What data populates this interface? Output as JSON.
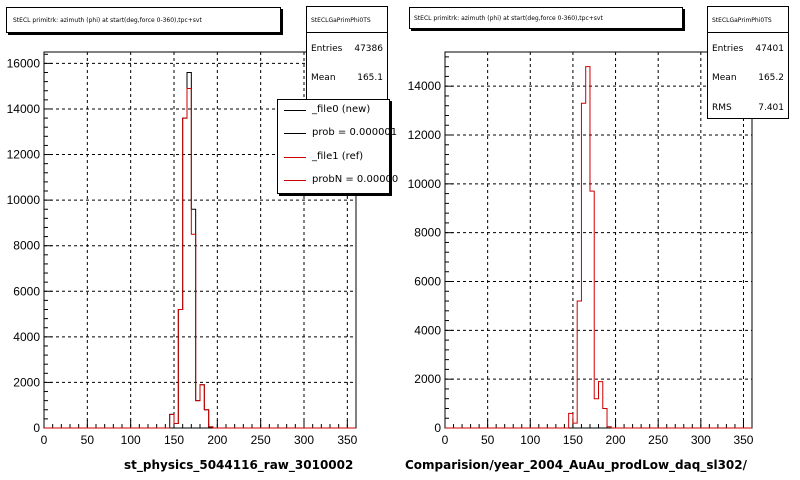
{
  "panels": [
    {
      "title": "StECL primitrk: azimuth (phi) at start(deg,force 0-360),tpc+svt",
      "stats": {
        "name": "StECLGaPrimPhi0TS",
        "rows": [
          {
            "label": "Entries",
            "value": "47386"
          },
          {
            "label": "Mean",
            "value": "165.1"
          }
        ]
      },
      "xlabel": "st_physics_5044116_raw_3010002",
      "legend": [
        {
          "label": "_file0 (new)",
          "color": "#000000"
        },
        {
          "label": "prob = 0.000001",
          "color": "#000000"
        },
        {
          "label": "_file1 (ref)",
          "color": "#cc0000"
        },
        {
          "label": "probN = 0.00000",
          "color": "#cc0000"
        }
      ]
    },
    {
      "title": "StECL primitrk: azimuth (phi) at start(deg,force 0-360),tpc+svt",
      "stats": {
        "name": "StECLGaPrimPhi0TS",
        "rows": [
          {
            "label": "Entries",
            "value": "47401"
          },
          {
            "label": "Mean",
            "value": "165.2"
          },
          {
            "label": "RMS",
            "value": "7.401"
          }
        ]
      },
      "xlabel": "Comparision/year_2004_AuAu_prodLow_daq_sl302/"
    }
  ],
  "chart_data": [
    {
      "type": "histogram",
      "title": "StECL primitrk: azimuth (phi) at start(deg,force 0-360),tpc+svt",
      "xlabel": "st_physics_5044116_raw_3010002",
      "xlim": [
        0,
        360
      ],
      "ylim": [
        0,
        16500
      ],
      "xticks": [
        0,
        50,
        100,
        150,
        200,
        250,
        300,
        350
      ],
      "yticks": [
        0,
        2000,
        4000,
        6000,
        8000,
        10000,
        12000,
        14000,
        16000
      ],
      "grid": true,
      "legend_position": "top-right",
      "bin_edges": [
        145,
        150,
        155,
        160,
        165,
        170,
        175,
        180,
        185,
        190,
        195
      ],
      "series": [
        {
          "name": "_file0 (new)",
          "color": "#000000",
          "values": [
            600,
            200,
            5200,
            13600,
            15600,
            9600,
            1200,
            1900,
            800,
            50
          ]
        },
        {
          "name": "_file1 (ref)",
          "color": "#cc0000",
          "values": [
            600,
            200,
            5200,
            13600,
            14900,
            8500,
            1200,
            1900,
            800,
            50
          ]
        }
      ]
    },
    {
      "type": "histogram",
      "title": "StECL primitrk: azimuth (phi) at start(deg,force 0-360),tpc+svt",
      "xlabel": "Comparision/year_2004_AuAu_prodLow_daq_sl302/",
      "xlim": [
        0,
        360
      ],
      "ylim": [
        0,
        15400
      ],
      "xticks": [
        0,
        50,
        100,
        150,
        200,
        250,
        300,
        350
      ],
      "yticks": [
        0,
        2000,
        4000,
        6000,
        8000,
        10000,
        12000,
        14000
      ],
      "grid": true,
      "series": [
        {
          "name": "",
          "color": "#cc0000",
          "bin_edges": [
            145,
            150,
            155,
            160,
            165,
            170,
            175,
            180,
            185,
            190,
            195
          ],
          "values": [
            600,
            200,
            5200,
            13300,
            14800,
            9700,
            1200,
            1900,
            800,
            50
          ]
        }
      ]
    }
  ]
}
